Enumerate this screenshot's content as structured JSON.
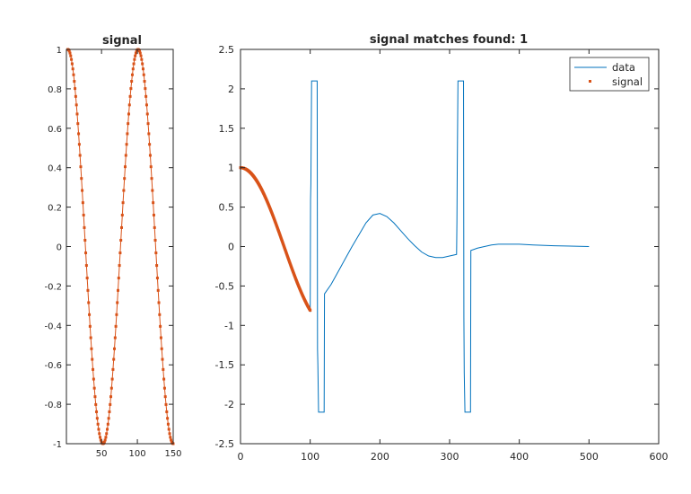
{
  "colors": {
    "data": "#0072BD",
    "signal": "#D95319",
    "axes": "#262626",
    "background": "#ffffff"
  },
  "chart_data": [
    {
      "type": "line",
      "title": "signal",
      "xlabel": "",
      "ylabel": "",
      "xlim": [
        1,
        150
      ],
      "ylim": [
        -1,
        1
      ],
      "grid": false,
      "xticks": [
        50,
        100,
        150
      ],
      "xtick_labels": [
        "50",
        "100",
        "150"
      ],
      "yticks": [
        -1,
        -0.8,
        -0.6,
        -0.4,
        -0.2,
        0,
        0.2,
        0.4,
        0.6,
        0.8,
        1
      ],
      "ytick_labels": [
        "-1",
        "-0.8",
        "-0.6",
        "-0.4",
        "-0.2",
        "0",
        "0.2",
        "0.4",
        "0.6",
        "0.8",
        "1"
      ],
      "series": [
        {
          "name": "signal",
          "marker": "dot",
          "function": "cos(2*pi*(x-3)/98)",
          "x_range": [
            3,
            150
          ],
          "samples": 148
        }
      ]
    },
    {
      "type": "line",
      "title": "signal matches found: 1",
      "xlabel": "",
      "ylabel": "",
      "xlim": [
        0,
        600
      ],
      "ylim": [
        -2.5,
        2.5
      ],
      "grid": false,
      "legend_position": "top-right",
      "xticks": [
        0,
        100,
        200,
        300,
        400,
        500,
        600
      ],
      "xtick_labels": [
        "0",
        "100",
        "200",
        "300",
        "400",
        "500",
        "600"
      ],
      "yticks": [
        -2.5,
        -2,
        -1.5,
        -1,
        -0.5,
        0,
        0.5,
        1,
        1.5,
        2,
        2.5
      ],
      "ytick_labels": [
        "-2.5",
        "-2",
        "-1.5",
        "-1",
        "-0.5",
        "0",
        "0.5",
        "1",
        "1.5",
        "2",
        "2.5"
      ],
      "series": [
        {
          "name": "data",
          "style": "line",
          "points": [
            [
              0,
              1.0
            ],
            [
              5,
              0.99
            ],
            [
              10,
              0.96
            ],
            [
              20,
              0.87
            ],
            [
              30,
              0.72
            ],
            [
              40,
              0.52
            ],
            [
              50,
              0.28
            ],
            [
              60,
              0.03
            ],
            [
              70,
              -0.22
            ],
            [
              80,
              -0.46
            ],
            [
              90,
              -0.65
            ],
            [
              95,
              -0.76
            ],
            [
              98,
              -0.8
            ],
            [
              100,
              -0.82
            ],
            [
              100.5,
              0.6
            ],
            [
              101,
              0.8
            ],
            [
              102,
              2.1
            ],
            [
              110,
              2.1
            ],
            [
              110.5,
              -1.3
            ],
            [
              111,
              -1.5
            ],
            [
              112,
              -2.1
            ],
            [
              120,
              -2.1
            ],
            [
              120.5,
              -0.6
            ],
            [
              130,
              -0.48
            ],
            [
              140,
              -0.32
            ],
            [
              150,
              -0.16
            ],
            [
              160,
              0.0
            ],
            [
              170,
              0.15
            ],
            [
              180,
              0.3
            ],
            [
              190,
              0.4
            ],
            [
              200,
              0.42
            ],
            [
              210,
              0.38
            ],
            [
              220,
              0.3
            ],
            [
              230,
              0.2
            ],
            [
              240,
              0.1
            ],
            [
              250,
              0.01
            ],
            [
              260,
              -0.07
            ],
            [
              270,
              -0.12
            ],
            [
              280,
              -0.14
            ],
            [
              290,
              -0.14
            ],
            [
              300,
              -0.12
            ],
            [
              310,
              -0.1
            ],
            [
              310.5,
              0.3
            ],
            [
              311,
              1.0
            ],
            [
              312,
              2.1
            ],
            [
              320,
              2.1
            ],
            [
              320.5,
              -0.9
            ],
            [
              321,
              -1.6
            ],
            [
              322,
              -2.1
            ],
            [
              330,
              -2.1
            ],
            [
              330.5,
              -0.05
            ],
            [
              340,
              -0.02
            ],
            [
              350,
              0.0
            ],
            [
              360,
              0.02
            ],
            [
              370,
              0.03
            ],
            [
              380,
              0.03
            ],
            [
              400,
              0.03
            ],
            [
              420,
              0.02
            ],
            [
              450,
              0.01
            ],
            [
              500,
              0.0
            ]
          ]
        },
        {
          "name": "signal",
          "marker": "dot",
          "function": "cos(2*pi*x/250)",
          "x_range": [
            0,
            100
          ],
          "samples": 200
        }
      ]
    }
  ]
}
